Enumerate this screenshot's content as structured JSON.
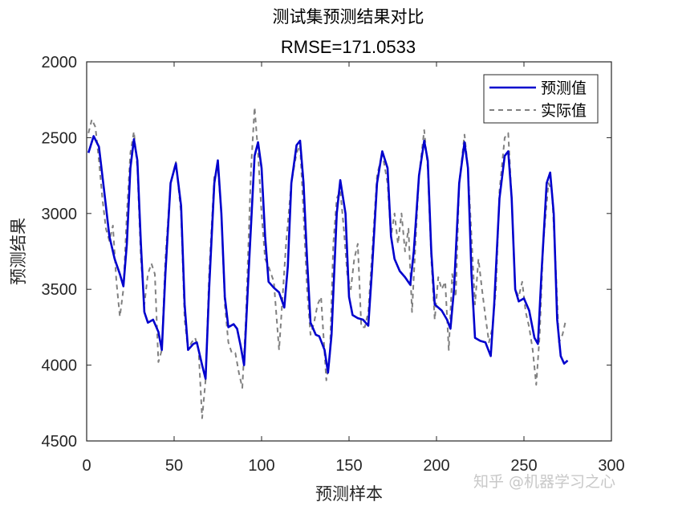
{
  "chart_data": {
    "type": "line",
    "title": "测试集预测结果对比",
    "subtitle": "RMSE=171.0533",
    "xlabel": "预测样本",
    "ylabel": "预测结果",
    "xlim": [
      0,
      300
    ],
    "ylim": [
      2000,
      4500
    ],
    "y_reversed": true,
    "xticks": [
      0,
      50,
      100,
      150,
      200,
      250,
      300
    ],
    "yticks": [
      2000,
      2500,
      3000,
      3500,
      4000,
      4500
    ],
    "grid": false,
    "legend_position": "top-right",
    "series": [
      {
        "name": "预测值",
        "color": "#0000cd",
        "style": "solid",
        "points": [
          [
            1,
            2600
          ],
          [
            4,
            2490
          ],
          [
            7,
            2560
          ],
          [
            10,
            2850
          ],
          [
            13,
            3150
          ],
          [
            16,
            3300
          ],
          [
            19,
            3400
          ],
          [
            21,
            3480
          ],
          [
            23,
            3200
          ],
          [
            25,
            2700
          ],
          [
            27,
            2510
          ],
          [
            29,
            2650
          ],
          [
            31,
            3200
          ],
          [
            33,
            3650
          ],
          [
            35,
            3720
          ],
          [
            38,
            3700
          ],
          [
            41,
            3780
          ],
          [
            43,
            3900
          ],
          [
            45,
            3400
          ],
          [
            48,
            2800
          ],
          [
            51,
            2670
          ],
          [
            54,
            2950
          ],
          [
            56,
            3600
          ],
          [
            58,
            3900
          ],
          [
            61,
            3860
          ],
          [
            63,
            3850
          ],
          [
            66,
            4000
          ],
          [
            68,
            4090
          ],
          [
            70,
            3500
          ],
          [
            73,
            2800
          ],
          [
            75,
            2650
          ],
          [
            77,
            3000
          ],
          [
            79,
            3550
          ],
          [
            81,
            3750
          ],
          [
            84,
            3730
          ],
          [
            86,
            3760
          ],
          [
            88,
            3870
          ],
          [
            90,
            4000
          ],
          [
            93,
            3300
          ],
          [
            96,
            2620
          ],
          [
            98,
            2530
          ],
          [
            100,
            2700
          ],
          [
            102,
            3150
          ],
          [
            104,
            3450
          ],
          [
            107,
            3490
          ],
          [
            110,
            3520
          ],
          [
            113,
            3620
          ],
          [
            115,
            3350
          ],
          [
            117,
            2800
          ],
          [
            120,
            2550
          ],
          [
            122,
            2520
          ],
          [
            124,
            2800
          ],
          [
            126,
            3300
          ],
          [
            128,
            3720
          ],
          [
            131,
            3800
          ],
          [
            133,
            3810
          ],
          [
            136,
            3900
          ],
          [
            138,
            4050
          ],
          [
            140,
            3800
          ],
          [
            143,
            3000
          ],
          [
            145,
            2780
          ],
          [
            148,
            3000
          ],
          [
            150,
            3550
          ],
          [
            152,
            3670
          ],
          [
            155,
            3690
          ],
          [
            158,
            3700
          ],
          [
            161,
            3740
          ],
          [
            163,
            3400
          ],
          [
            166,
            2800
          ],
          [
            169,
            2590
          ],
          [
            172,
            2700
          ],
          [
            174,
            3150
          ],
          [
            176,
            3300
          ],
          [
            179,
            3380
          ],
          [
            182,
            3420
          ],
          [
            185,
            3470
          ],
          [
            187,
            3250
          ],
          [
            190,
            2750
          ],
          [
            193,
            2520
          ],
          [
            195,
            2650
          ],
          [
            197,
            3250
          ],
          [
            199,
            3600
          ],
          [
            201,
            3620
          ],
          [
            203,
            3640
          ],
          [
            206,
            3700
          ],
          [
            208,
            3760
          ],
          [
            210,
            3500
          ],
          [
            213,
            2800
          ],
          [
            216,
            2530
          ],
          [
            218,
            2700
          ],
          [
            220,
            3400
          ],
          [
            222,
            3820
          ],
          [
            225,
            3840
          ],
          [
            228,
            3850
          ],
          [
            231,
            3940
          ],
          [
            233,
            3600
          ],
          [
            236,
            2900
          ],
          [
            239,
            2620
          ],
          [
            241,
            2590
          ],
          [
            243,
            2900
          ],
          [
            245,
            3500
          ],
          [
            247,
            3580
          ],
          [
            250,
            3560
          ],
          [
            253,
            3640
          ],
          [
            256,
            3820
          ],
          [
            258,
            3860
          ],
          [
            260,
            3400
          ],
          [
            263,
            2800
          ],
          [
            265,
            2730
          ],
          [
            267,
            3000
          ],
          [
            269,
            3700
          ],
          [
            271,
            3940
          ],
          [
            273,
            3990
          ],
          [
            275,
            3970
          ]
        ]
      },
      {
        "name": "实际值",
        "color": "#808080",
        "style": "dashed",
        "points": [
          [
            1,
            2470
          ],
          [
            3,
            2380
          ],
          [
            5,
            2430
          ],
          [
            7,
            2650
          ],
          [
            9,
            2900
          ],
          [
            11,
            3100
          ],
          [
            13,
            3180
          ],
          [
            15,
            3080
          ],
          [
            17,
            3450
          ],
          [
            19,
            3680
          ],
          [
            21,
            3500
          ],
          [
            23,
            3000
          ],
          [
            25,
            2600
          ],
          [
            27,
            2460
          ],
          [
            29,
            2700
          ],
          [
            31,
            3300
          ],
          [
            33,
            3600
          ],
          [
            35,
            3400
          ],
          [
            37,
            3330
          ],
          [
            39,
            3400
          ],
          [
            41,
            3980
          ],
          [
            43,
            3900
          ],
          [
            45,
            3300
          ],
          [
            48,
            2800
          ],
          [
            51,
            2660
          ],
          [
            54,
            3000
          ],
          [
            56,
            3700
          ],
          [
            58,
            3900
          ],
          [
            60,
            3850
          ],
          [
            62,
            3820
          ],
          [
            64,
            3900
          ],
          [
            66,
            4350
          ],
          [
            68,
            4100
          ],
          [
            70,
            3400
          ],
          [
            73,
            2750
          ],
          [
            75,
            2700
          ],
          [
            77,
            3000
          ],
          [
            79,
            3600
          ],
          [
            81,
            3850
          ],
          [
            83,
            3920
          ],
          [
            85,
            3920
          ],
          [
            87,
            4050
          ],
          [
            89,
            4150
          ],
          [
            91,
            3700
          ],
          [
            94,
            2700
          ],
          [
            96,
            2300
          ],
          [
            98,
            2600
          ],
          [
            100,
            3000
          ],
          [
            102,
            3300
          ],
          [
            104,
            3350
          ],
          [
            107,
            3450
          ],
          [
            110,
            3900
          ],
          [
            112,
            3550
          ],
          [
            114,
            3200
          ],
          [
            117,
            2800
          ],
          [
            120,
            2600
          ],
          [
            122,
            2550
          ],
          [
            124,
            3000
          ],
          [
            126,
            3500
          ],
          [
            128,
            3800
          ],
          [
            130,
            3720
          ],
          [
            132,
            3600
          ],
          [
            134,
            3550
          ],
          [
            137,
            4100
          ],
          [
            139,
            3950
          ],
          [
            141,
            3200
          ],
          [
            143,
            2900
          ],
          [
            145,
            2850
          ],
          [
            147,
            3100
          ],
          [
            149,
            3400
          ],
          [
            151,
            3500
          ],
          [
            153,
            3300
          ],
          [
            155,
            3200
          ],
          [
            157,
            3750
          ],
          [
            159,
            3750
          ],
          [
            161,
            3650
          ],
          [
            163,
            3300
          ],
          [
            166,
            2750
          ],
          [
            169,
            2600
          ],
          [
            172,
            2800
          ],
          [
            174,
            3150
          ],
          [
            176,
            3000
          ],
          [
            178,
            3200
          ],
          [
            180,
            3000
          ],
          [
            182,
            3250
          ],
          [
            184,
            3100
          ],
          [
            186,
            3650
          ],
          [
            188,
            3200
          ],
          [
            190,
            2750
          ],
          [
            193,
            2450
          ],
          [
            195,
            2700
          ],
          [
            197,
            3300
          ],
          [
            199,
            3700
          ],
          [
            201,
            3420
          ],
          [
            203,
            3500
          ],
          [
            205,
            3450
          ],
          [
            207,
            3900
          ],
          [
            209,
            3400
          ],
          [
            211,
            3550
          ],
          [
            213,
            2800
          ],
          [
            216,
            2480
          ],
          [
            218,
            2700
          ],
          [
            220,
            3150
          ],
          [
            222,
            3600
          ],
          [
            224,
            3300
          ],
          [
            226,
            3500
          ],
          [
            228,
            3680
          ],
          [
            230,
            3850
          ],
          [
            232,
            3750
          ],
          [
            234,
            3500
          ],
          [
            236,
            2850
          ],
          [
            239,
            2500
          ],
          [
            241,
            2470
          ],
          [
            243,
            2900
          ],
          [
            245,
            3500
          ],
          [
            247,
            3550
          ],
          [
            249,
            3450
          ],
          [
            251,
            3650
          ],
          [
            253,
            3750
          ],
          [
            255,
            3900
          ],
          [
            257,
            4130
          ],
          [
            259,
            3800
          ],
          [
            261,
            3200
          ],
          [
            264,
            2800
          ],
          [
            266,
            2850
          ],
          [
            268,
            3300
          ],
          [
            270,
            3850
          ],
          [
            272,
            3800
          ],
          [
            274,
            3700
          ]
        ]
      }
    ]
  },
  "watermark": "知乎 @机器学习之心"
}
